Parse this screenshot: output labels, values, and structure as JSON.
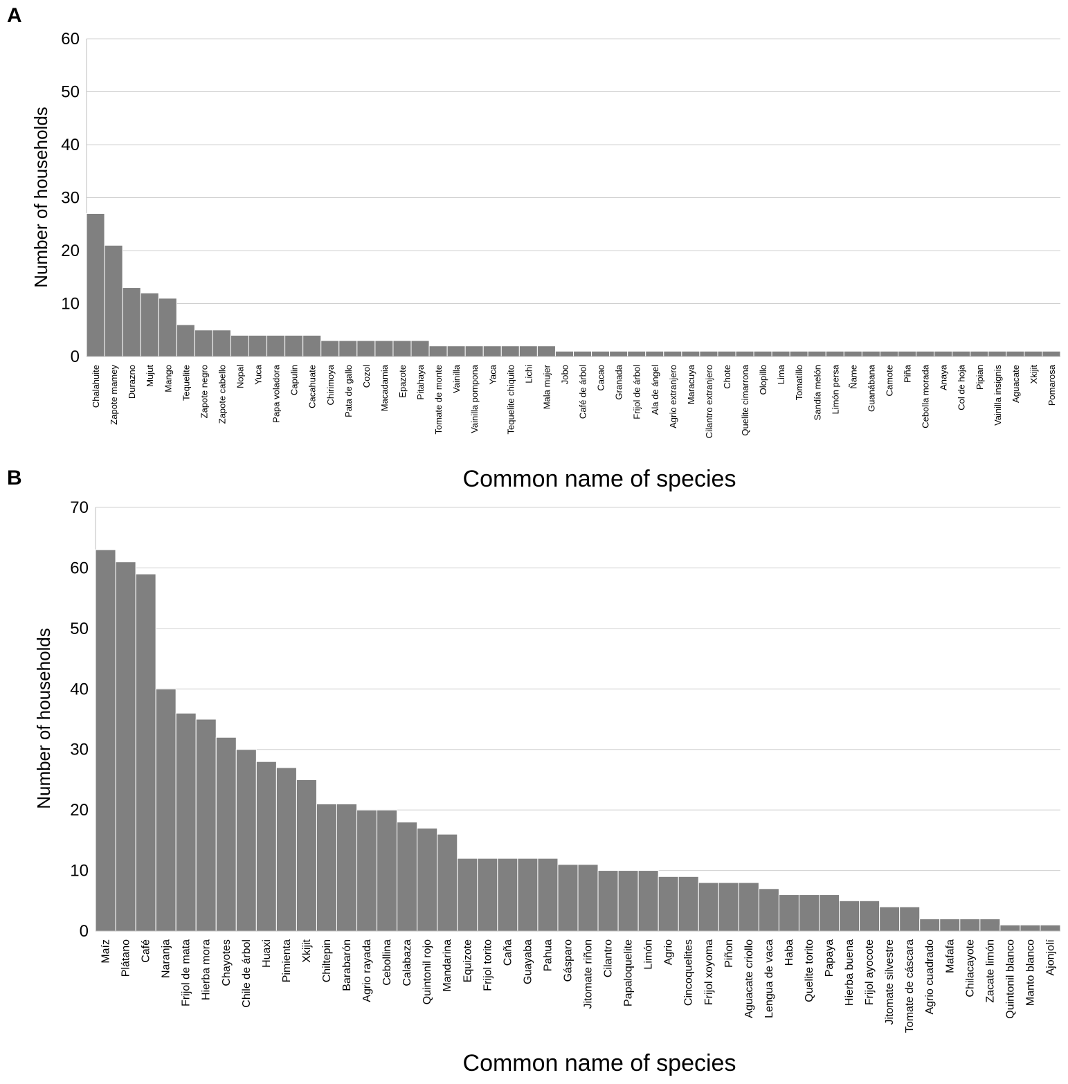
{
  "chart_data": [
    {
      "type": "bar",
      "panel": "A",
      "xlabel": "Common name of species",
      "ylabel": "Number of households",
      "ylim": [
        0,
        60
      ],
      "yticks": [
        0,
        10,
        20,
        30,
        40,
        50,
        60
      ],
      "grid": true,
      "bar_color": "#808080",
      "categories": [
        "Chalahuite",
        "Zapote mamey",
        "Durazno",
        "Mujut",
        "Mango",
        "Tequelite",
        "Zapote negro",
        "Zapote cabello",
        "Nopal",
        "Yuca",
        "Papa voladora",
        "Capulin",
        "Cacahuate",
        "Chirimoya",
        "Pata de gallo",
        "Cozol",
        "Macadamia",
        "Epazote",
        "Pitahaya",
        "Tomate de monte",
        "Vainilla",
        "Vainilla pompona",
        "Yaca",
        "Tequelite chiquito",
        "Lichi",
        "Mala mujer",
        "Jobo",
        "Café de árbol",
        "Cacao",
        "Granada",
        "Frijol de árbol",
        "Ala de ángel",
        "Agrio extranjero",
        "Maracuya",
        "Cilantro extranjero",
        "Chote",
        "Quelite cimarrona",
        "Olopillo",
        "Lima",
        "Tomatillo",
        "Sandía melón",
        "Limón persa",
        "Ñame",
        "Guanábana",
        "Camote",
        "Piña",
        "Cebolla morada",
        "Anaya",
        "Col de hoja",
        "Pipian",
        "Vainilla insignis",
        "Aguacate",
        "Xkijit",
        "Pomarosa"
      ],
      "values": [
        27,
        21,
        13,
        12,
        11,
        6,
        5,
        5,
        4,
        4,
        4,
        4,
        4,
        3,
        3,
        3,
        3,
        3,
        3,
        2,
        2,
        2,
        2,
        2,
        2,
        2,
        1,
        1,
        1,
        1,
        1,
        1,
        1,
        1,
        1,
        1,
        1,
        1,
        1,
        1,
        1,
        1,
        1,
        1,
        1,
        1,
        1,
        1,
        1,
        1,
        1,
        1,
        1,
        1
      ]
    },
    {
      "type": "bar",
      "panel": "B",
      "xlabel": "Common name of species",
      "ylabel": "Number of households",
      "ylim": [
        0,
        70
      ],
      "yticks": [
        0,
        10,
        20,
        30,
        40,
        50,
        60,
        70
      ],
      "grid": true,
      "bar_color": "#808080",
      "categories": [
        "Maíz",
        "Plátano",
        "Café",
        "Naranja",
        "Frijol de mata",
        "Hierba mora",
        "Chayotes",
        "Chile de árbol",
        "Huaxi",
        "Pimienta",
        "Xkijit",
        "Chiltepin",
        "Barabarón",
        "Agrio rayada",
        "Cebollina",
        "Calabaza",
        "Quintonil rojo",
        "Mandarina",
        "Equizote",
        "Frijol torito",
        "Caña",
        "Guayaba",
        "Pahua",
        "Gásparo",
        "Jitomate riñon",
        "Cilantro",
        "Papaloquelite",
        "Limón",
        "Agrio",
        "Cincoquelites",
        "Frijol xoyoma",
        "Piñon",
        "Aguacate criollo",
        "Lengua de vaca",
        "Haba",
        "Quelite torito",
        "Papaya",
        "Hierba buena",
        "Frijol ayocote",
        "Jitomate silvestre",
        "Tomate de cáscara",
        "Agrio cuadrado",
        "Mafafa",
        "Chilacayote",
        "Zacate limón",
        "Quintonil blanco",
        "Manto blanco",
        "Ajonjolí"
      ],
      "values": [
        63,
        61,
        59,
        40,
        36,
        35,
        32,
        30,
        28,
        27,
        25,
        21,
        21,
        20,
        20,
        18,
        17,
        16,
        12,
        12,
        12,
        12,
        12,
        11,
        11,
        10,
        10,
        10,
        9,
        9,
        8,
        8,
        8,
        7,
        6,
        6,
        6,
        5,
        5,
        4,
        4,
        2,
        2,
        2,
        2,
        1,
        1,
        1
      ]
    }
  ]
}
